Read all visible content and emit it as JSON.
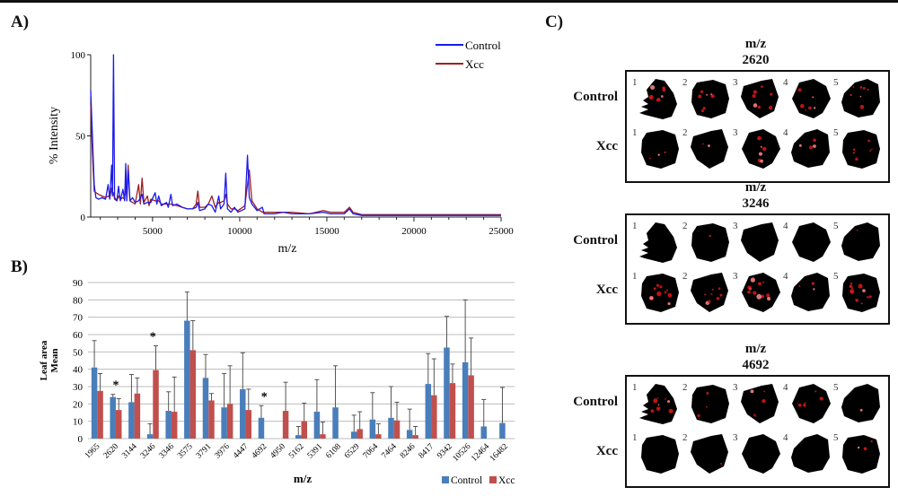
{
  "panels": {
    "a_label": "A)",
    "b_label": "B)",
    "c_label": "C)"
  },
  "chart_data": [
    {
      "id": "A",
      "type": "line",
      "title": "",
      "xlabel": "m/z",
      "ylabel": "% Intensity",
      "xlim": [
        1450,
        25000
      ],
      "ylim": [
        0,
        100
      ],
      "xticks": [
        5000,
        10000,
        15000,
        20000,
        25000
      ],
      "yticks": [
        0,
        50,
        100
      ],
      "legend": "top-right",
      "series": [
        {
          "name": "Control",
          "color": "#1a1aee",
          "points": [
            [
              1450,
              78
            ],
            [
              1550,
              50
            ],
            [
              1650,
              20
            ],
            [
              1750,
              12
            ],
            [
              1900,
              11
            ],
            [
              2100,
              12
            ],
            [
              2300,
              11
            ],
            [
              2450,
              20
            ],
            [
              2550,
              11
            ],
            [
              2650,
              32
            ],
            [
              2700,
              14
            ],
            [
              2760,
              100
            ],
            [
              2820,
              12
            ],
            [
              2950,
              10
            ],
            [
              3050,
              19
            ],
            [
              3150,
              10
            ],
            [
              3300,
              17
            ],
            [
              3400,
              10
            ],
            [
              3460,
              33
            ],
            [
              3520,
              10
            ],
            [
              3600,
              29
            ],
            [
              3700,
              10
            ],
            [
              3850,
              12
            ],
            [
              4000,
              9
            ],
            [
              4200,
              10
            ],
            [
              4400,
              14
            ],
            [
              4500,
              8
            ],
            [
              4700,
              9
            ],
            [
              4900,
              9
            ],
            [
              5150,
              15
            ],
            [
              5250,
              8
            ],
            [
              5350,
              13
            ],
            [
              5500,
              7
            ],
            [
              5800,
              9
            ],
            [
              5900,
              6
            ],
            [
              6050,
              14
            ],
            [
              6150,
              7
            ],
            [
              6400,
              8
            ],
            [
              6700,
              6
            ],
            [
              7000,
              5
            ],
            [
              7300,
              5
            ],
            [
              7500,
              6
            ],
            [
              7600,
              9
            ],
            [
              7700,
              4
            ],
            [
              8000,
              5
            ],
            [
              8200,
              8
            ],
            [
              8400,
              7
            ],
            [
              8600,
              3
            ],
            [
              8800,
              13
            ],
            [
              8900,
              5
            ],
            [
              9100,
              8
            ],
            [
              9200,
              27
            ],
            [
              9300,
              5
            ],
            [
              9500,
              3
            ],
            [
              9700,
              6
            ],
            [
              9900,
              3
            ],
            [
              10300,
              5
            ],
            [
              10450,
              38
            ],
            [
              10550,
              12
            ],
            [
              10700,
              8
            ],
            [
              11000,
              4
            ],
            [
              11300,
              6
            ],
            [
              11400,
              2
            ],
            [
              12000,
              2
            ],
            [
              12500,
              3
            ],
            [
              13000,
              2
            ],
            [
              14000,
              2
            ],
            [
              14800,
              3
            ],
            [
              15200,
              2
            ],
            [
              16000,
              2
            ],
            [
              16300,
              5
            ],
            [
              16500,
              2
            ],
            [
              17000,
              1
            ],
            [
              20000,
              1
            ],
            [
              25000,
              1
            ]
          ]
        },
        {
          "name": "Xcc",
          "color": "#a01e1e",
          "points": [
            [
              1450,
              70
            ],
            [
              1550,
              40
            ],
            [
              1650,
              16
            ],
            [
              1750,
              15
            ],
            [
              1900,
              14
            ],
            [
              2100,
              13
            ],
            [
              2300,
              12
            ],
            [
              2450,
              13
            ],
            [
              2550,
              12
            ],
            [
              2650,
              18
            ],
            [
              2700,
              13
            ],
            [
              2760,
              15
            ],
            [
              2820,
              11
            ],
            [
              2950,
              10
            ],
            [
              3050,
              13
            ],
            [
              3150,
              11
            ],
            [
              3300,
              12
            ],
            [
              3400,
              11
            ],
            [
              3460,
              20
            ],
            [
              3520,
              12
            ],
            [
              3600,
              32
            ],
            [
              3700,
              10
            ],
            [
              3850,
              9
            ],
            [
              4000,
              8
            ],
            [
              4200,
              20
            ],
            [
              4300,
              8
            ],
            [
              4400,
              24
            ],
            [
              4500,
              9
            ],
            [
              4700,
              13
            ],
            [
              4800,
              7
            ],
            [
              4900,
              11
            ],
            [
              5150,
              10
            ],
            [
              5350,
              10
            ],
            [
              5500,
              8
            ],
            [
              5800,
              8
            ],
            [
              6050,
              8
            ],
            [
              6400,
              7
            ],
            [
              6700,
              6
            ],
            [
              7000,
              5
            ],
            [
              7300,
              5
            ],
            [
              7500,
              8
            ],
            [
              7600,
              16
            ],
            [
              7700,
              6
            ],
            [
              8000,
              6
            ],
            [
              8200,
              8
            ],
            [
              8400,
              13
            ],
            [
              8600,
              6
            ],
            [
              8800,
              9
            ],
            [
              8900,
              9
            ],
            [
              9100,
              10
            ],
            [
              9200,
              14
            ],
            [
              9300,
              8
            ],
            [
              9500,
              5
            ],
            [
              9700,
              5
            ],
            [
              9900,
              4
            ],
            [
              10300,
              7
            ],
            [
              10450,
              20
            ],
            [
              10550,
              29
            ],
            [
              10700,
              10
            ],
            [
              11000,
              5
            ],
            [
              11300,
              3
            ],
            [
              12000,
              3
            ],
            [
              12500,
              3
            ],
            [
              13000,
              3
            ],
            [
              14000,
              2
            ],
            [
              14800,
              4
            ],
            [
              15200,
              3
            ],
            [
              16000,
              3
            ],
            [
              16300,
              6
            ],
            [
              16500,
              3
            ],
            [
              17000,
              1.5
            ],
            [
              20000,
              1.5
            ],
            [
              25000,
              1.5
            ]
          ]
        }
      ]
    },
    {
      "id": "B",
      "type": "bar",
      "title": "",
      "xlabel": "m/z",
      "ylabel": "Leaf area Mean",
      "ylabel_lines": [
        "Leaf area",
        "Mean"
      ],
      "ylim": [
        0,
        90
      ],
      "yticks": [
        0,
        10,
        20,
        30,
        40,
        50,
        60,
        70,
        80,
        90
      ],
      "grid": true,
      "legend": "bottom-right",
      "categories": [
        "1965",
        "2620",
        "3144",
        "3246",
        "3346",
        "3575",
        "3791",
        "3976",
        "4447",
        "4692",
        "4950",
        "5162",
        "5391",
        "6108",
        "6529",
        "7064",
        "7464",
        "8246",
        "8417",
        "9342",
        "10526",
        "12464",
        "16482"
      ],
      "series": [
        {
          "name": "Control",
          "color": "#4a7ebb",
          "values": [
            41,
            24,
            21,
            2.5,
            16,
            68,
            35,
            18,
            28.5,
            12,
            0,
            2,
            15.5,
            18,
            4,
            11,
            12,
            5,
            31.5,
            52.5,
            44,
            7,
            9
          ],
          "errors": [
            15.5,
            1.5,
            16,
            6,
            11,
            16.5,
            13.5,
            19.5,
            21,
            7,
            0,
            5,
            18.5,
            24,
            9.5,
            15.5,
            18,
            12,
            17.5,
            18,
            36,
            15.5,
            20.5
          ]
        },
        {
          "name": "Xcc",
          "color": "#c0504d",
          "values": [
            27.5,
            16.5,
            26,
            39.5,
            15.5,
            51,
            22,
            20,
            16.5,
            0,
            16,
            10,
            2.5,
            0,
            5.5,
            2.5,
            10.5,
            2,
            25,
            32,
            36.5,
            0,
            0
          ],
          "errors": [
            10,
            6.5,
            9,
            14,
            20,
            17,
            4,
            22,
            12,
            0,
            16.5,
            10.5,
            7,
            0,
            10,
            6,
            10.5,
            5,
            21,
            11,
            21.5,
            0,
            0
          ]
        }
      ],
      "significance_markers": [
        {
          "category": "2620",
          "symbol": "*"
        },
        {
          "category": "3246",
          "symbol": "*"
        },
        {
          "category": "4692",
          "symbol": "*"
        }
      ]
    }
  ],
  "imaging": {
    "panel_title_prefix": "m/z",
    "row_labels": [
      "Control",
      "Xcc"
    ],
    "sample_numbers": [
      "1",
      "2",
      "3",
      "4",
      "5"
    ],
    "blocks": [
      {
        "mz": "2620",
        "control_signal": [
          0.6,
          0.5,
          0.5,
          0.4,
          0.5
        ],
        "xcc_signal": [
          0.2,
          0.15,
          0.4,
          0.3,
          0.4
        ]
      },
      {
        "mz": "3246",
        "control_signal": [
          0.03,
          0.05,
          0.0,
          0.0,
          0.1
        ],
        "xcc_signal": [
          0.7,
          0.6,
          0.8,
          0.2,
          0.8
        ]
      },
      {
        "mz": "4692",
        "control_signal": [
          0.6,
          0.2,
          0.35,
          0.35,
          0.05
        ],
        "xcc_signal": [
          0.0,
          0.05,
          0.0,
          0.02,
          0.2
        ]
      }
    ]
  }
}
